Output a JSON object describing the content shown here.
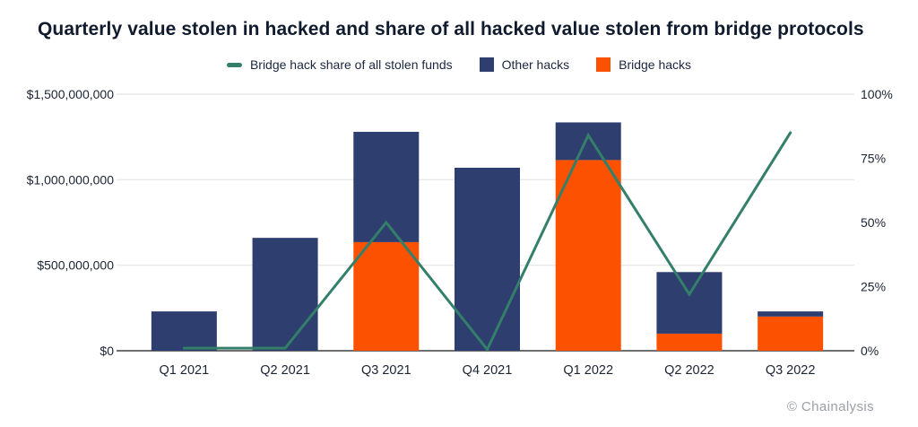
{
  "title": "Quarterly value stolen in hacked and share of all hacked value stolen from bridge protocols",
  "footer": {
    "credit": "© Chainalysis"
  },
  "colors": {
    "navy": "#2d3e6f",
    "orange": "#fc5200",
    "teal": "#347f6a",
    "gridline": "#e4e4e4",
    "baseline": "#6f6f6f",
    "text": "#1b2433",
    "footer_gray": "#9aa0a6"
  },
  "legend": [
    {
      "label": "Bridge hack share of all stolen funds",
      "swatch": "line",
      "color": "#347f6a"
    },
    {
      "label": "Other hacks",
      "swatch": "square",
      "color": "#2d3e6f"
    },
    {
      "label": "Bridge hacks",
      "swatch": "square",
      "color": "#fc5200"
    }
  ],
  "chart_data": {
    "type": "combo_stacked_bar_line",
    "title": "Quarterly value stolen in hacked and share of all hacked value stolen from bridge protocols",
    "categories": [
      "Q1 2021",
      "Q2 2021",
      "Q3 2021",
      "Q4 2021",
      "Q1 2022",
      "Q2 2022",
      "Q3 2022"
    ],
    "series": [
      {
        "name": "Bridge hacks",
        "type": "bar",
        "stack_order": 0,
        "axis": "left",
        "color": "#fc5200",
        "values_usd_millions": [
          0,
          0,
          635,
          0,
          1115,
          100,
          200
        ]
      },
      {
        "name": "Other hacks",
        "type": "bar",
        "stack_order": 1,
        "axis": "left",
        "color": "#2d3e6f",
        "values_usd_millions": [
          230,
          660,
          645,
          1070,
          220,
          360,
          30
        ]
      },
      {
        "name": "Bridge hack share of all stolen funds",
        "type": "line",
        "axis": "right",
        "color": "#347f6a",
        "values_percent": [
          1,
          1,
          50,
          0.5,
          84,
          22,
          85
        ]
      }
    ],
    "left_axis": {
      "ticks": [
        "$1,500,000,000",
        "$1,000,000,000",
        "$500,000,000",
        "$0"
      ],
      "tick_values": [
        1500,
        1000,
        500,
        0
      ],
      "range_usd_millions": [
        0,
        1500
      ]
    },
    "right_axis": {
      "ticks": [
        "100%",
        "75%",
        "50%",
        "25%",
        "0%"
      ],
      "tick_values": [
        100,
        75,
        50,
        25,
        0
      ],
      "range_percent": [
        0,
        100
      ]
    },
    "grid": "horizontal only",
    "legend_position": "top center"
  }
}
